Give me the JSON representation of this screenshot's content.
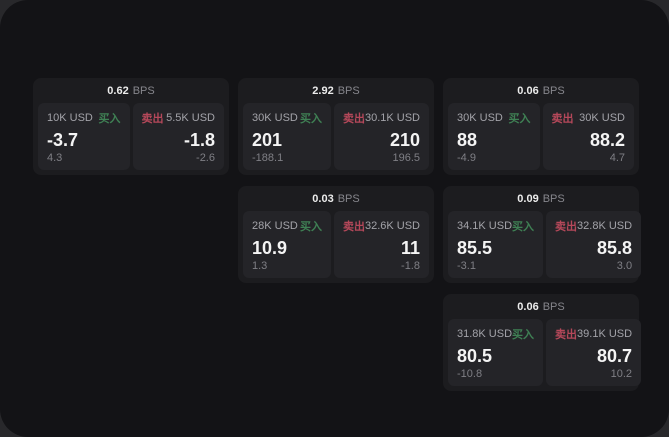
{
  "page": {
    "bg_outer": "#28282b",
    "bg_app": "#131316",
    "colors": {
      "card_bg": "#1c1c1f",
      "panel_bg": "#242428",
      "buy_green": "#3f8054",
      "sell_red": "#b5485a",
      "value_white": "#f4f4f4",
      "muted_gray": "#86868c"
    }
  },
  "labels": {
    "bps": "BPS",
    "buy": "买入",
    "sell": "卖出"
  },
  "cards": [
    {
      "row": 1,
      "col": 1,
      "bps": "0.62",
      "buy": {
        "notional": "10K USD",
        "price": "-3.7",
        "delta": "4.3"
      },
      "sell": {
        "notional": "5.5K USD",
        "price": "-1.8",
        "delta": "-2.6"
      }
    },
    {
      "row": 1,
      "col": 2,
      "bps": "2.92",
      "buy": {
        "notional": "30K USD",
        "price": "201",
        "delta": "-188.1"
      },
      "sell": {
        "notional": "30.1K USD",
        "price": "210",
        "delta": "196.5"
      }
    },
    {
      "row": 1,
      "col": 3,
      "bps": "0.06",
      "buy": {
        "notional": "30K USD",
        "price": "88",
        "delta": "-4.9"
      },
      "sell": {
        "notional": "30K USD",
        "price": "88.2",
        "delta": "4.7"
      }
    },
    {
      "row": 2,
      "col": 2,
      "bps": "0.03",
      "buy": {
        "notional": "28K USD",
        "price": "10.9",
        "delta": "1.3"
      },
      "sell": {
        "notional": "32.6K USD",
        "price": "11",
        "delta": "-1.8"
      }
    },
    {
      "row": 2,
      "col": 3,
      "bps": "0.09",
      "buy": {
        "notional": "34.1K USD",
        "price": "85.5",
        "delta": "-3.1"
      },
      "sell": {
        "notional": "32.8K USD",
        "price": "85.8",
        "delta": "3.0"
      }
    },
    {
      "row": 3,
      "col": 3,
      "bps": "0.06",
      "buy": {
        "notional": "31.8K USD",
        "price": "80.5",
        "delta": "-10.8"
      },
      "sell": {
        "notional": "39.1K USD",
        "price": "80.7",
        "delta": "10.2"
      }
    }
  ]
}
